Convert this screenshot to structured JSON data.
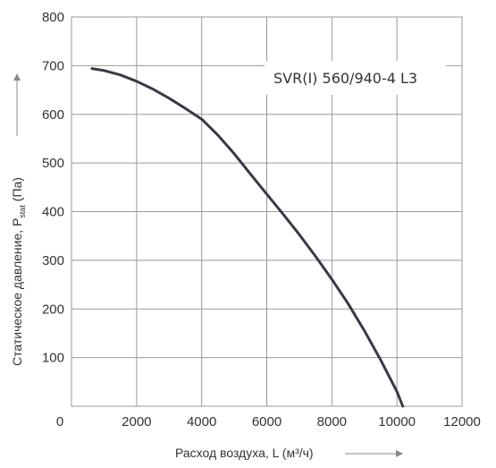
{
  "chart_data": {
    "type": "line",
    "title": "",
    "annotation": "SVR(I) 560/940-4 L3",
    "xlabel": "Расход воздуха, L (м³/ч)",
    "ylabel_prefix": "Статическое давление, P",
    "ylabel_sub": "stat",
    "ylabel_suffix": " (Па)",
    "xlim": [
      0,
      12000
    ],
    "ylim": [
      0,
      800
    ],
    "xticks": [
      0,
      2000,
      4000,
      6000,
      8000,
      10000,
      12000
    ],
    "yticks": [
      100,
      200,
      300,
      400,
      500,
      600,
      700,
      800
    ],
    "y_origin_label": "0",
    "grid": true,
    "line_color": "#3a3a46",
    "series": [
      {
        "x": [
          630,
          1000,
          1500,
          2000,
          2500,
          3000,
          3500,
          4000,
          4500,
          5000,
          5500,
          6000,
          6500,
          7000,
          7500,
          8000,
          8500,
          9000,
          9500,
          10000,
          10180
        ],
        "values": [
          694,
          690,
          681,
          668,
          652,
          633,
          612,
          590,
          557,
          519,
          477,
          436,
          395,
          353,
          308,
          261,
          211,
          155,
          95,
          30,
          0
        ]
      }
    ]
  }
}
